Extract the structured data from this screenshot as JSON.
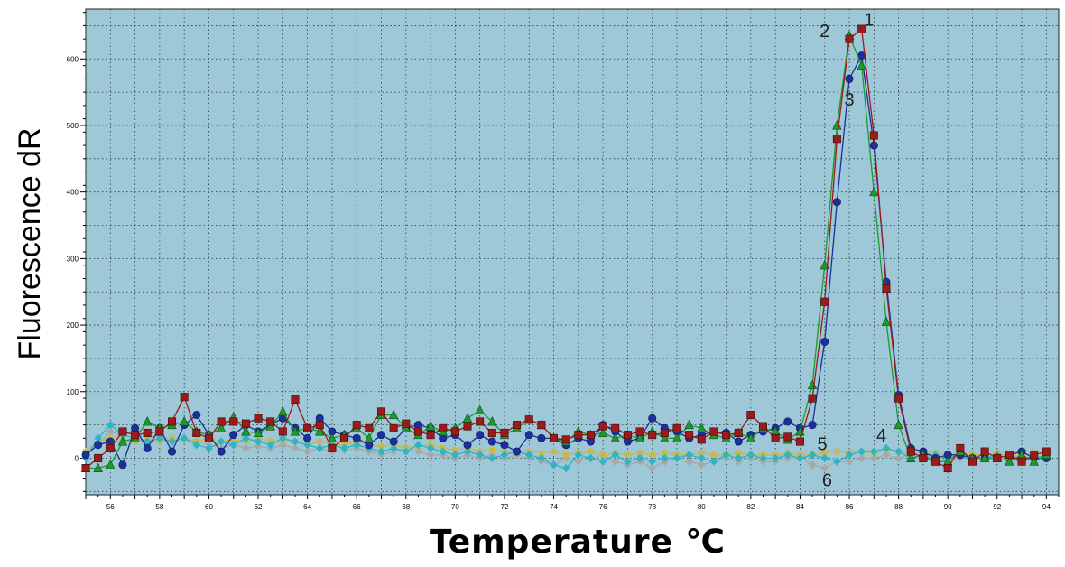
{
  "chart_data": {
    "type": "line",
    "title": "",
    "xlabel": "Temperature ℃",
    "ylabel": "Fluorescence dR",
    "xlim": [
      55,
      94.5
    ],
    "ylim": [
      -55,
      675
    ],
    "xticks": [
      56,
      58,
      60,
      62,
      64,
      66,
      68,
      70,
      72,
      74,
      76,
      78,
      80,
      82,
      84,
      86,
      88,
      90,
      92,
      94
    ],
    "yticks": [
      0,
      100,
      200,
      300,
      400,
      500,
      600
    ],
    "grid": true,
    "background": "#9ec8d8",
    "annotations": [
      {
        "text": "1",
        "x": 86.8,
        "y": 650
      },
      {
        "text": "2",
        "x": 85.0,
        "y": 633
      },
      {
        "text": "3",
        "x": 86.0,
        "y": 530
      },
      {
        "text": "4",
        "x": 87.3,
        "y": 25
      },
      {
        "text": "5",
        "x": 84.9,
        "y": 12
      },
      {
        "text": "6",
        "x": 85.1,
        "y": -42
      }
    ],
    "series": [
      {
        "label": "1",
        "color": "#9b1b1b",
        "marker": "square",
        "x": [
          55,
          55.5,
          56,
          56.5,
          57,
          57.5,
          58,
          58.5,
          59,
          59.5,
          60,
          60.5,
          61,
          61.5,
          62,
          62.5,
          63,
          63.5,
          64,
          64.5,
          65,
          65.5,
          66,
          66.5,
          67,
          67.5,
          68,
          68.5,
          69,
          69.5,
          70,
          70.5,
          71,
          71.5,
          72,
          72.5,
          73,
          73.5,
          74,
          74.5,
          75,
          75.5,
          76,
          76.5,
          77,
          77.5,
          78,
          78.5,
          79,
          79.5,
          80,
          80.5,
          81,
          81.5,
          82,
          82.5,
          83,
          83.5,
          84,
          84.5,
          85,
          85.5,
          86,
          86.5,
          87,
          87.5,
          88,
          88.5,
          89,
          89.5,
          90,
          90.5,
          91,
          91.5,
          92,
          92.5,
          93,
          93.5,
          94
        ],
        "y": [
          -15,
          0,
          15,
          40,
          35,
          38,
          40,
          55,
          92,
          38,
          30,
          55,
          55,
          52,
          60,
          55,
          40,
          88,
          45,
          50,
          15,
          30,
          50,
          45,
          70,
          45,
          52,
          40,
          35,
          45,
          40,
          48,
          55,
          38,
          38,
          50,
          58,
          50,
          30,
          28,
          35,
          35,
          48,
          45,
          35,
          40,
          35,
          38,
          45,
          35,
          28,
          40,
          35,
          38,
          65,
          48,
          30,
          32,
          25,
          90,
          235,
          480,
          630,
          645,
          485,
          255,
          90,
          10,
          0,
          -5,
          -15,
          15,
          -5,
          10,
          0,
          5,
          -5,
          5,
          10
        ]
      },
      {
        "label": "2",
        "color": "#1e9a2a",
        "marker": "triangle",
        "x": [
          55,
          55.5,
          56,
          56.5,
          57,
          57.5,
          58,
          58.5,
          59,
          59.5,
          60,
          60.5,
          61,
          61.5,
          62,
          62.5,
          63,
          63.5,
          64,
          64.5,
          65,
          65.5,
          66,
          66.5,
          67,
          67.5,
          68,
          68.5,
          69,
          69.5,
          70,
          70.5,
          71,
          71.5,
          72,
          72.5,
          73,
          73.5,
          74,
          74.5,
          75,
          75.5,
          76,
          76.5,
          77,
          77.5,
          78,
          78.5,
          79,
          79.5,
          80,
          80.5,
          81,
          81.5,
          82,
          82.5,
          83,
          83.5,
          84,
          84.5,
          85,
          85.5,
          86,
          86.5,
          87,
          87.5,
          88,
          88.5,
          89,
          89.5,
          90,
          90.5,
          91,
          91.5,
          92,
          92.5,
          93,
          93.5,
          94
        ],
        "y": [
          -15,
          -15,
          -10,
          25,
          30,
          55,
          45,
          50,
          55,
          40,
          35,
          45,
          62,
          40,
          38,
          48,
          70,
          40,
          45,
          40,
          30,
          35,
          45,
          30,
          65,
          65,
          45,
          35,
          48,
          40,
          45,
          60,
          72,
          55,
          35,
          45,
          58,
          50,
          30,
          25,
          40,
          35,
          38,
          30,
          35,
          30,
          40,
          30,
          30,
          50,
          45,
          35,
          30,
          38,
          30,
          45,
          40,
          28,
          40,
          110,
          290,
          500,
          635,
          590,
          400,
          205,
          50,
          0,
          5,
          -5,
          -5,
          10,
          0,
          0,
          0,
          -5,
          5,
          -5,
          5
        ]
      },
      {
        "label": "3",
        "color": "#1c2f9c",
        "marker": "circle",
        "x": [
          55,
          55.5,
          56,
          56.5,
          57,
          57.5,
          58,
          58.5,
          59,
          59.5,
          60,
          60.5,
          61,
          61.5,
          62,
          62.5,
          63,
          63.5,
          64,
          64.5,
          65,
          65.5,
          66,
          66.5,
          67,
          67.5,
          68,
          68.5,
          69,
          69.5,
          70,
          70.5,
          71,
          71.5,
          72,
          72.5,
          73,
          73.5,
          74,
          74.5,
          75,
          75.5,
          76,
          76.5,
          77,
          77.5,
          78,
          78.5,
          79,
          79.5,
          80,
          80.5,
          81,
          81.5,
          82,
          82.5,
          83,
          83.5,
          84,
          84.5,
          85,
          85.5,
          86,
          86.5,
          87,
          87.5,
          88,
          88.5,
          89,
          89.5,
          90,
          90.5,
          91,
          91.5,
          92,
          92.5,
          93,
          93.5,
          94
        ],
        "y": [
          5,
          20,
          25,
          -10,
          45,
          15,
          45,
          10,
          50,
          65,
          35,
          10,
          35,
          50,
          40,
          50,
          60,
          45,
          30,
          60,
          40,
          35,
          30,
          20,
          35,
          25,
          45,
          50,
          45,
          30,
          35,
          20,
          35,
          25,
          20,
          10,
          35,
          30,
          30,
          20,
          30,
          25,
          50,
          40,
          25,
          30,
          60,
          45,
          40,
          30,
          35,
          40,
          38,
          25,
          35,
          40,
          45,
          55,
          45,
          50,
          175,
          385,
          570,
          605,
          470,
          265,
          95,
          15,
          10,
          0,
          5,
          5,
          0,
          0,
          0,
          5,
          10,
          0,
          0
        ]
      },
      {
        "label": "4",
        "color": "#2eb4c4",
        "marker": "diamond",
        "x": [
          55,
          55.5,
          56,
          56.5,
          57,
          57.5,
          58,
          58.5,
          59,
          59.5,
          60,
          60.5,
          61,
          61.5,
          62,
          62.5,
          63,
          63.5,
          64,
          64.5,
          65,
          65.5,
          66,
          66.5,
          67,
          67.5,
          68,
          68.5,
          69,
          69.5,
          70,
          70.5,
          71,
          71.5,
          72,
          72.5,
          73,
          73.5,
          74,
          74.5,
          75,
          75.5,
          76,
          76.5,
          77,
          77.5,
          78,
          78.5,
          79,
          79.5,
          80,
          80.5,
          81,
          81.5,
          82,
          82.5,
          83,
          83.5,
          84,
          84.5,
          85,
          85.5,
          86,
          86.5,
          87,
          87.5,
          88,
          88.5,
          89,
          89.5,
          90,
          90.5,
          91,
          91.5,
          92,
          92.5,
          93,
          93.5,
          94
        ],
        "y": [
          0,
          30,
          50,
          35,
          30,
          25,
          30,
          25,
          30,
          20,
          15,
          25,
          20,
          30,
          25,
          20,
          30,
          25,
          20,
          15,
          20,
          15,
          20,
          15,
          10,
          15,
          10,
          20,
          15,
          10,
          5,
          10,
          5,
          0,
          5,
          10,
          5,
          0,
          -10,
          -15,
          5,
          0,
          -5,
          5,
          -5,
          0,
          -5,
          0,
          0,
          5,
          0,
          -5,
          5,
          0,
          5,
          0,
          0,
          5,
          0,
          5,
          0,
          -5,
          5,
          10,
          10,
          15,
          10,
          0,
          5,
          5,
          0,
          5,
          -5,
          0,
          5,
          0,
          -5,
          0,
          5
        ]
      },
      {
        "label": "5",
        "color": "#c8b84a",
        "marker": "star",
        "x": [
          55,
          55.5,
          56,
          56.5,
          57,
          57.5,
          58,
          58.5,
          59,
          59.5,
          60,
          60.5,
          61,
          61.5,
          62,
          62.5,
          63,
          63.5,
          64,
          64.5,
          65,
          65.5,
          66,
          66.5,
          67,
          67.5,
          68,
          68.5,
          69,
          69.5,
          70,
          70.5,
          71,
          71.5,
          72,
          72.5,
          73,
          73.5,
          74,
          74.5,
          75,
          75.5,
          76,
          76.5,
          77,
          77.5,
          78,
          78.5,
          79,
          79.5,
          80,
          80.5,
          81,
          81.5,
          82,
          82.5,
          83,
          83.5,
          84,
          84.5,
          85,
          85.5,
          86,
          86.5,
          87,
          87.5,
          88,
          88.5,
          89,
          89.5,
          90,
          90.5,
          91,
          91.5,
          92,
          92.5,
          93,
          93.5,
          94
        ],
        "y": [
          10,
          25,
          30,
          28,
          25,
          30,
          25,
          30,
          28,
          25,
          30,
          25,
          28,
          25,
          30,
          25,
          28,
          25,
          20,
          25,
          22,
          20,
          25,
          20,
          18,
          20,
          15,
          18,
          20,
          15,
          12,
          15,
          10,
          12,
          10,
          8,
          10,
          8,
          10,
          5,
          8,
          10,
          5,
          8,
          5,
          8,
          5,
          8,
          5,
          5,
          8,
          5,
          5,
          8,
          5,
          5,
          5,
          8,
          5,
          5,
          8,
          10,
          8,
          10,
          8,
          12,
          10,
          8,
          10,
          8,
          5,
          8,
          5,
          5,
          8,
          5,
          5,
          8,
          5
        ]
      },
      {
        "label": "6",
        "color": "#a8a8a8",
        "marker": "diamond",
        "x": [
          55,
          55.5,
          56,
          56.5,
          57,
          57.5,
          58,
          58.5,
          59,
          59.5,
          60,
          60.5,
          61,
          61.5,
          62,
          62.5,
          63,
          63.5,
          64,
          64.5,
          65,
          65.5,
          66,
          66.5,
          67,
          67.5,
          68,
          68.5,
          69,
          69.5,
          70,
          70.5,
          71,
          71.5,
          72,
          72.5,
          73,
          73.5,
          74,
          74.5,
          75,
          75.5,
          76,
          76.5,
          77,
          77.5,
          78,
          78.5,
          79,
          79.5,
          80,
          80.5,
          81,
          81.5,
          82,
          82.5,
          83,
          83.5,
          84,
          84.5,
          85,
          85.5,
          86,
          86.5,
          87,
          87.5,
          88,
          88.5,
          89,
          89.5,
          90,
          90.5,
          91,
          91.5,
          92,
          92.5,
          93,
          93.5,
          94
        ],
        "y": [
          5,
          20,
          40,
          35,
          40,
          30,
          35,
          25,
          30,
          25,
          20,
          15,
          20,
          15,
          18,
          15,
          20,
          15,
          10,
          15,
          10,
          12,
          15,
          10,
          5,
          10,
          15,
          10,
          5,
          5,
          0,
          5,
          0,
          5,
          0,
          5,
          0,
          -5,
          -10,
          0,
          -5,
          0,
          5,
          -5,
          -10,
          -5,
          -15,
          -5,
          0,
          -5,
          -10,
          -5,
          0,
          -5,
          0,
          -5,
          -5,
          0,
          0,
          -10,
          -15,
          -5,
          -5,
          0,
          0,
          5,
          0,
          5,
          0,
          5,
          0,
          0,
          5,
          0,
          0,
          5,
          0,
          0,
          5
        ]
      }
    ]
  }
}
